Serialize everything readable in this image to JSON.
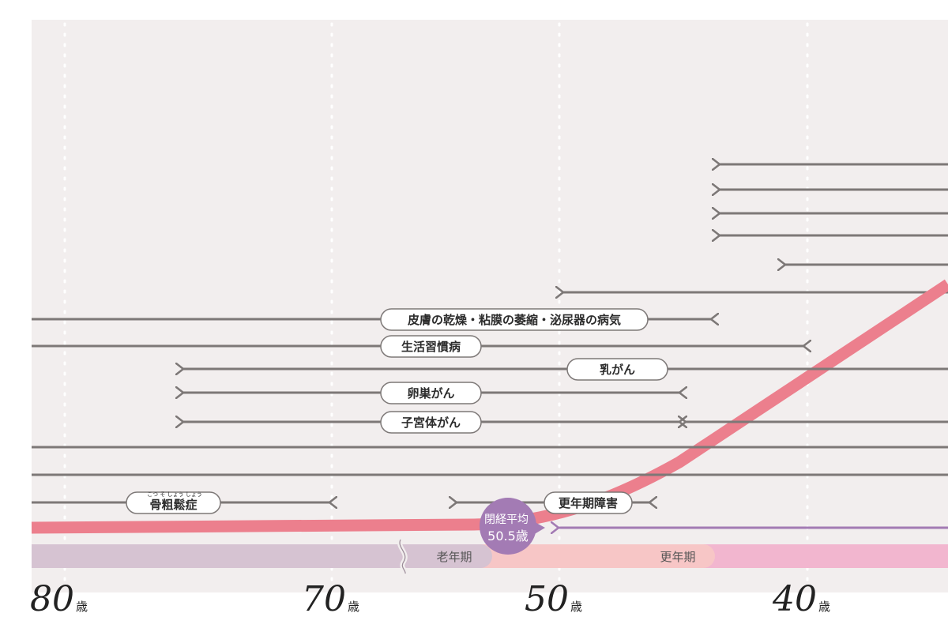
{
  "axis": {
    "unit": "歳",
    "ticks": [
      {
        "value": "80"
      },
      {
        "value": "70"
      },
      {
        "value": "50"
      },
      {
        "value": "40"
      }
    ]
  },
  "conditions": [
    {
      "label": "皮膚の乾燥・粘膜の萎縮・泌尿器の病気"
    },
    {
      "label": "生活習慣病"
    },
    {
      "label": "乳がん"
    },
    {
      "label": "卵巣がん"
    },
    {
      "label": "子宮体がん"
    },
    {
      "label": "骨粗鬆症",
      "ruby": "こつ そ しょう しょう"
    },
    {
      "label": "更年期障害"
    }
  ],
  "menopause": {
    "line1": "閉経平均",
    "line2": "50.5歳"
  },
  "phases": [
    {
      "label": "老年期"
    },
    {
      "label": "更年期"
    }
  ],
  "colors": {
    "background": "#f2eeee",
    "arrow": "#7d7877",
    "curve": "#ec7f8d",
    "menopause_marker": "#a37bb4",
    "phase_old": "#d6c3d2",
    "phase_meno": "#f7c6c6",
    "phase_young": "#f2b6cf"
  }
}
